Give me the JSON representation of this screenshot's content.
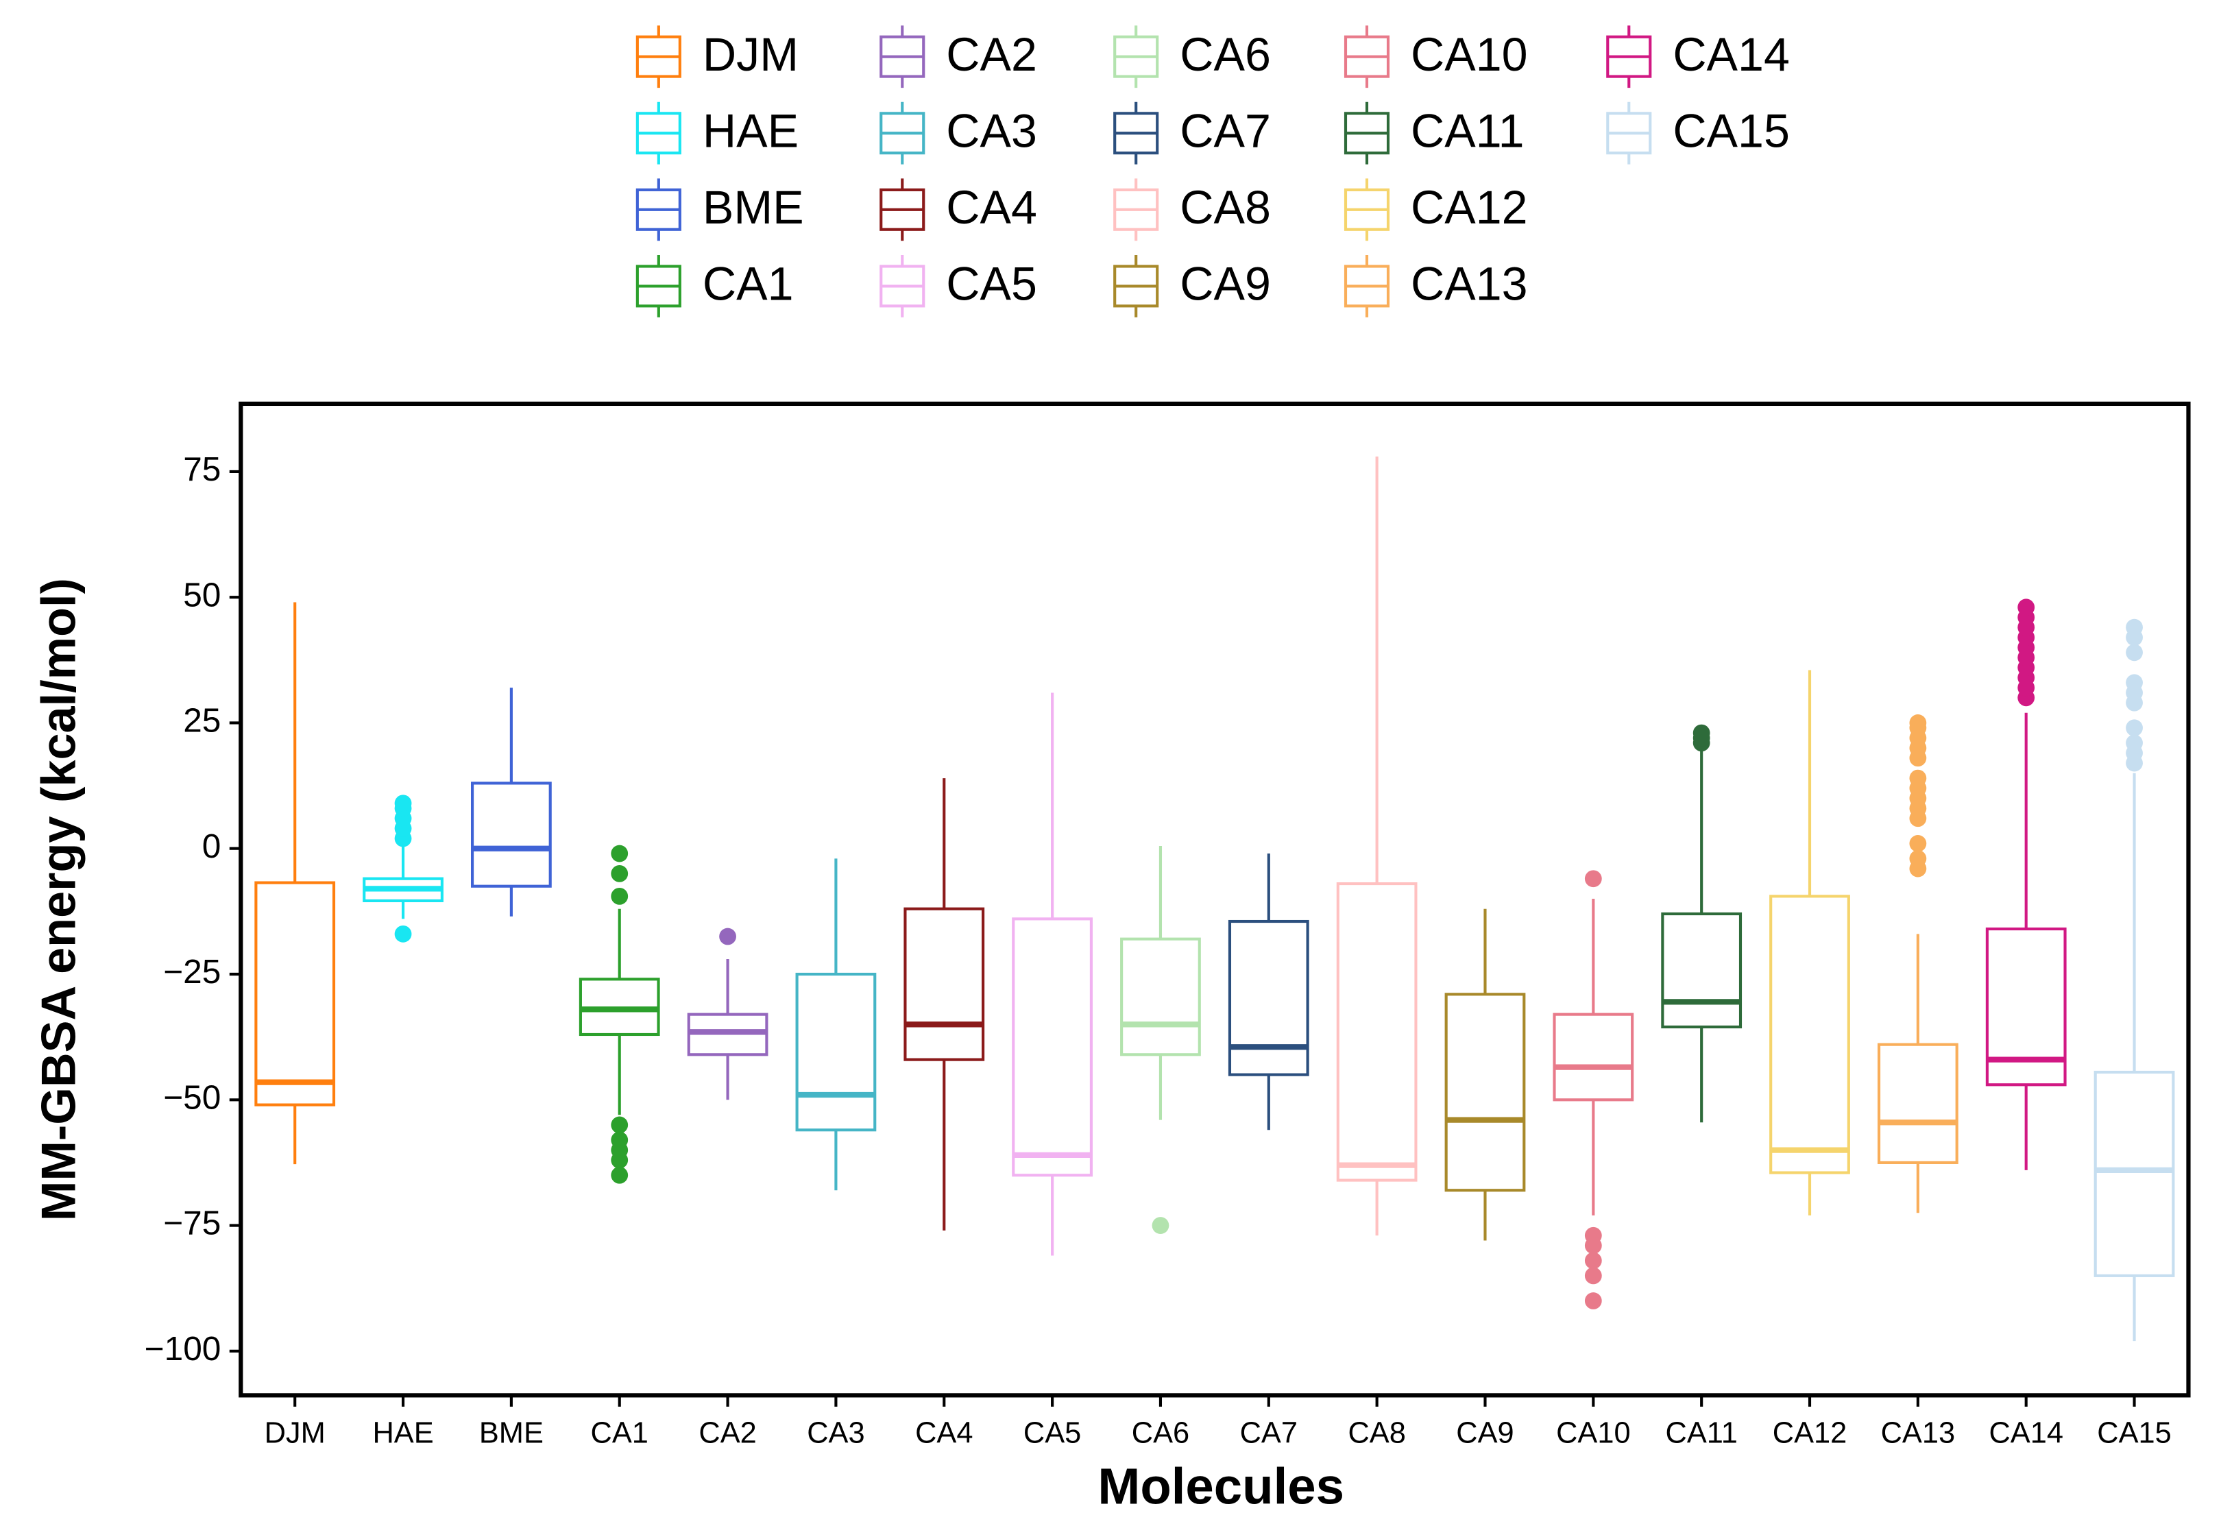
{
  "chart_data": {
    "type": "box",
    "x_label": "Molecules",
    "y_label": "MM-GBSA energy (kcal/mol)",
    "categories": [
      "DJM",
      "HAE",
      "BME",
      "CA1",
      "CA2",
      "CA3",
      "CA4",
      "CA5",
      "CA6",
      "CA7",
      "CA8",
      "CA9",
      "CA10",
      "CA11",
      "CA12",
      "CA13",
      "CA14",
      "CA15"
    ],
    "ylim": [
      -108.8,
      88.5
    ],
    "yticks": [
      75,
      50,
      25,
      0,
      {
        "value": -25,
        "label": "−25"
      },
      {
        "value": -50,
        "label": "−50"
      },
      {
        "value": -75,
        "label": "−75"
      },
      {
        "value": -100,
        "label": "−100"
      }
    ],
    "grid": false,
    "legend_position": "top",
    "boxes": [
      {
        "name": "DJM",
        "color": "#ff7f0e",
        "whisker_low": -62.8,
        "q1": -51,
        "median": -46.5,
        "q3": -6.8,
        "whisker_high": 49,
        "outliers": []
      },
      {
        "name": "HAE",
        "color": "#19e6f2",
        "whisker_low": -14,
        "q1": -10.4,
        "median": -8,
        "q3": -6,
        "whisker_high": 1,
        "outliers": [
          2,
          4,
          6,
          8,
          9,
          -17
        ]
      },
      {
        "name": "BME",
        "color": "#3f63d6",
        "whisker_low": -13.5,
        "q1": -7.5,
        "median": 0,
        "q3": 13,
        "whisker_high": 32,
        "outliers": []
      },
      {
        "name": "CA1",
        "color": "#2ca02c",
        "whisker_low": -53,
        "q1": -37,
        "median": -32,
        "q3": -26,
        "whisker_high": -12,
        "outliers": [
          -1,
          -5,
          -9.5,
          -55,
          -58,
          -60,
          -62,
          -65
        ]
      },
      {
        "name": "CA2",
        "color": "#9467bd",
        "whisker_low": -50,
        "q1": -41,
        "median": -36.5,
        "q3": -33,
        "whisker_high": -22,
        "outliers": [
          -17.5
        ]
      },
      {
        "name": "CA3",
        "color": "#45b5c6",
        "whisker_low": -68,
        "q1": -56,
        "median": -49,
        "q3": -25,
        "whisker_high": -2,
        "outliers": []
      },
      {
        "name": "CA4",
        "color": "#8b1a1a",
        "whisker_low": -76,
        "q1": -42,
        "median": -35,
        "q3": -12,
        "whisker_high": 14,
        "outliers": []
      },
      {
        "name": "CA5",
        "color": "#f1b2f1",
        "whisker_low": -81,
        "q1": -65,
        "median": -61,
        "q3": -14,
        "whisker_high": 31,
        "outliers": []
      },
      {
        "name": "CA6",
        "color": "#b3e3ae",
        "whisker_low": -54,
        "q1": -41,
        "median": -35,
        "q3": -18,
        "whisker_high": 0.5,
        "outliers": [
          -75
        ]
      },
      {
        "name": "CA7",
        "color": "#2b4f7e",
        "whisker_low": -56,
        "q1": -45,
        "median": -39.5,
        "q3": -14.5,
        "whisker_high": -1,
        "outliers": []
      },
      {
        "name": "CA8",
        "color": "#ffc1c1",
        "whisker_low": -77,
        "q1": -66,
        "median": -63,
        "q3": -7,
        "whisker_high": 78,
        "outliers": []
      },
      {
        "name": "CA9",
        "color": "#a8892a",
        "whisker_low": -78,
        "q1": -68,
        "median": -54,
        "q3": -29,
        "whisker_high": -12,
        "outliers": []
      },
      {
        "name": "CA10",
        "color": "#e87a8a",
        "whisker_low": -73,
        "q1": -50,
        "median": -43.5,
        "q3": -33,
        "whisker_high": -10,
        "outliers": [
          -6,
          -77,
          -79,
          -82,
          -85,
          -90
        ]
      },
      {
        "name": "CA11",
        "color": "#2e6b3a",
        "whisker_low": -54.5,
        "q1": -35.5,
        "median": -30.5,
        "q3": -13,
        "whisker_high": 20,
        "outliers": [
          21,
          22,
          23
        ]
      },
      {
        "name": "CA12",
        "color": "#f5d46c",
        "whisker_low": -73,
        "q1": -64.5,
        "median": -60,
        "q3": -9.5,
        "whisker_high": 35.5,
        "outliers": []
      },
      {
        "name": "CA13",
        "color": "#f9ae5a",
        "whisker_low": -72.5,
        "q1": -62.5,
        "median": -54.5,
        "q3": -39,
        "whisker_high": -17,
        "outliers": [
          -4,
          -2,
          1,
          6,
          8,
          10,
          12,
          14,
          18,
          20,
          22,
          24,
          25
        ]
      },
      {
        "name": "CA14",
        "color": "#d11883",
        "whisker_low": -64,
        "q1": -47,
        "median": -42,
        "q3": -16,
        "whisker_high": 27,
        "outliers": [
          30,
          32,
          34,
          36,
          38,
          40,
          42,
          44,
          46,
          48
        ]
      },
      {
        "name": "CA15",
        "color": "#c6def0",
        "whisker_low": -98,
        "q1": -85,
        "median": -64,
        "q3": -44.5,
        "whisker_high": 15,
        "outliers": [
          17,
          19,
          21,
          24,
          29,
          31,
          33,
          39,
          42,
          44
        ]
      }
    ]
  }
}
